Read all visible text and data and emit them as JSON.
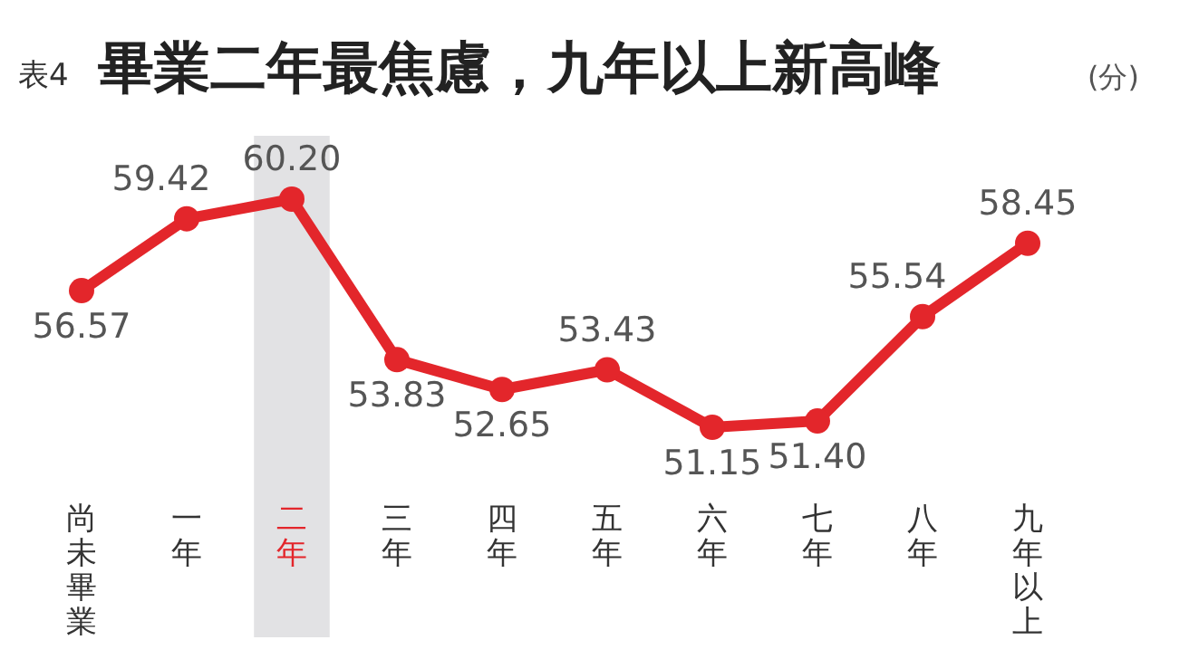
{
  "chart_data": {
    "type": "line",
    "title": "畢業二年最焦慮，九年以上新高峰",
    "ylabel": "(分)",
    "annotations": [
      "表4"
    ],
    "categories": [
      "尚未畢業",
      "一年",
      "二年",
      "三年",
      "四年",
      "五年",
      "六年",
      "七年",
      "八年",
      "九年以上"
    ],
    "series": [
      {
        "color": "#e3262b",
        "values": [
          56.57,
          59.42,
          60.2,
          53.83,
          52.65,
          53.43,
          51.15,
          51.4,
          55.54,
          58.45
        ],
        "value_labels": [
          "56.57",
          "59.42",
          "60.20",
          "53.83",
          "52.65",
          "53.43",
          "51.15",
          "51.40",
          "55.54",
          "58.45"
        ]
      }
    ],
    "bands": [
      {
        "axis": "x",
        "from": "二年",
        "to": "二年",
        "color": "#e2e2e4"
      }
    ],
    "marker": "circle",
    "line_style": "solid"
  }
}
